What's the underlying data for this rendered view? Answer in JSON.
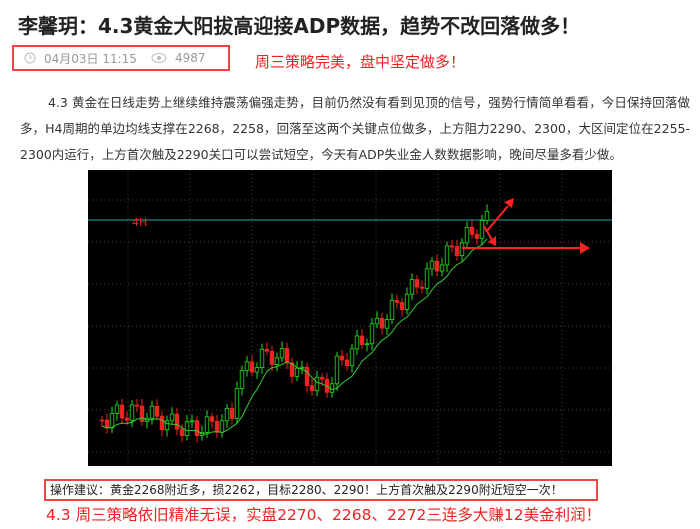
{
  "header": {
    "title": "李馨玥：4.3黄金大阳拔高迎接ADP数据，趋势不改回落做多！",
    "date": "04月03日 11:15",
    "views": "4987",
    "highlight": "周三策略完美，盘中坚定做多！"
  },
  "body": {
    "paragraph": "4.3  黄金在日线走势上继续维持震荡偏强走势，目前仍然没有看到见顶的信号，强势行情简单看看，今日保持回落做多，H4周期的单边均线支撑在2268，2258，回落至这两个关键点位做多，上方阻力2290、2300，大区间定位在2255-2300内运行，上方首次触及2290关口可以尝试短空，今天有ADP失业金人数数据影响，晚间尽量多看少做。",
    "chart": {
      "label": "4H"
    }
  },
  "footer": {
    "advice": "操作建议：黄金2268附近多，损2262，目标2280、2290！上方首次触及2290附近短空一次！",
    "result": "4.3 周三策略依旧精准无误，实盘2270、2268、2272三连多大赚12美金利润！"
  }
}
